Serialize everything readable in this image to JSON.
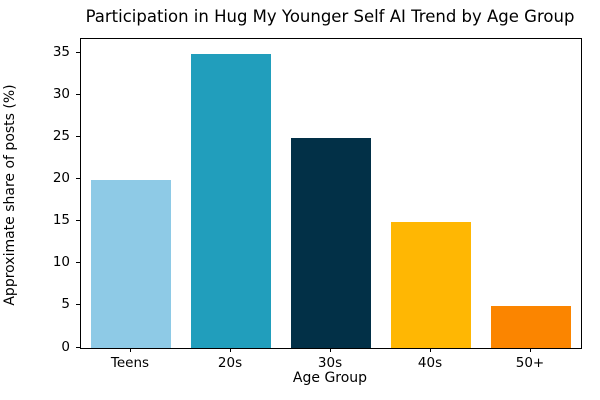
{
  "chart_data": {
    "type": "bar",
    "title": "Participation in Hug My Younger Self AI Trend by Age Group",
    "xlabel": "Age Group",
    "ylabel": "Approximate share of posts (%)",
    "categories": [
      "Teens",
      "20s",
      "30s",
      "40s",
      "50+"
    ],
    "values": [
      20,
      35,
      25,
      15,
      5
    ],
    "bar_colors": [
      "#8ECAE6",
      "#219EBC",
      "#023047",
      "#FFB703",
      "#FB8500"
    ],
    "yticks": [
      0,
      5,
      10,
      15,
      20,
      25,
      30,
      35
    ],
    "ylim": [
      0,
      36.75
    ],
    "grid": false,
    "legend": "none",
    "spine_color": "#000000",
    "background_color": "#ffffff"
  }
}
